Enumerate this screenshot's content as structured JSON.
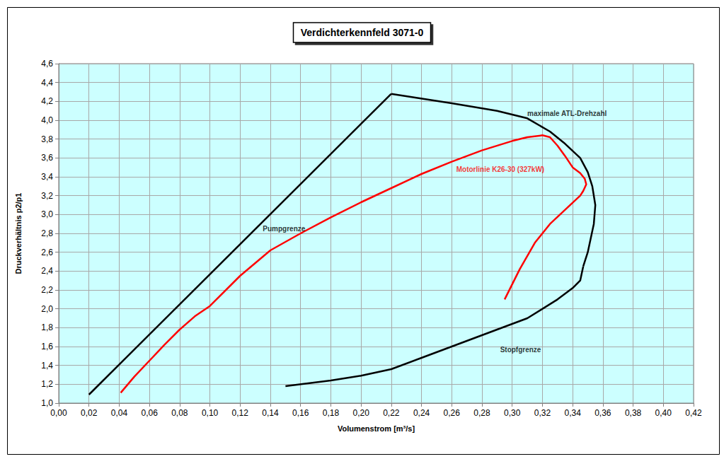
{
  "chart_data": {
    "type": "line",
    "title": "Verdichterkennfeld 3071-0",
    "x_label": "Volumenstrom [m³/s]",
    "y_label": "Druckverhältnis p2/p1",
    "xlim": [
      0,
      0.42
    ],
    "ylim": [
      1.0,
      4.6
    ],
    "xticks": [
      {
        "value": 0,
        "label": "0,00"
      },
      {
        "value": 0.02,
        "label": "0,02"
      },
      {
        "value": 0.04,
        "label": "0,04"
      },
      {
        "value": 0.06,
        "label": "0,06"
      },
      {
        "value": 0.08,
        "label": "0,08"
      },
      {
        "value": 0.1,
        "label": "0,10"
      },
      {
        "value": 0.12,
        "label": "0,12"
      },
      {
        "value": 0.14,
        "label": "0,14"
      },
      {
        "value": 0.16,
        "label": "0,16"
      },
      {
        "value": 0.18,
        "label": "0,18"
      },
      {
        "value": 0.2,
        "label": "0,20"
      },
      {
        "value": 0.22,
        "label": "0,22"
      },
      {
        "value": 0.24,
        "label": "0,24"
      },
      {
        "value": 0.26,
        "label": "0,26"
      },
      {
        "value": 0.28,
        "label": "0,28"
      },
      {
        "value": 0.3,
        "label": "0,30"
      },
      {
        "value": 0.32,
        "label": "0,32"
      },
      {
        "value": 0.34,
        "label": "0,34"
      },
      {
        "value": 0.36,
        "label": "0,36"
      },
      {
        "value": 0.38,
        "label": "0,38"
      },
      {
        "value": 0.4,
        "label": "0,40"
      },
      {
        "value": 0.42,
        "label": "0,42"
      }
    ],
    "yticks": [
      {
        "value": 1.0,
        "label": "1,0"
      },
      {
        "value": 1.2,
        "label": "1,2"
      },
      {
        "value": 1.4,
        "label": "1,4"
      },
      {
        "value": 1.6,
        "label": "1,6"
      },
      {
        "value": 1.8,
        "label": "1,8"
      },
      {
        "value": 2.0,
        "label": "2,0"
      },
      {
        "value": 2.2,
        "label": "2,2"
      },
      {
        "value": 2.4,
        "label": "2,4"
      },
      {
        "value": 2.6,
        "label": "2,6"
      },
      {
        "value": 2.8,
        "label": "2,8"
      },
      {
        "value": 3.0,
        "label": "3,0"
      },
      {
        "value": 3.2,
        "label": "3,2"
      },
      {
        "value": 3.4,
        "label": "3,4"
      },
      {
        "value": 3.6,
        "label": "3,6"
      },
      {
        "value": 3.8,
        "label": "3,8"
      },
      {
        "value": 4.0,
        "label": "4,0"
      },
      {
        "value": 4.2,
        "label": "4,2"
      },
      {
        "value": 4.4,
        "label": "4,4"
      },
      {
        "value": 4.6,
        "label": "4,6"
      }
    ],
    "grid": true,
    "series": [
      {
        "color": "#000000",
        "x": [
          0.02,
          0.22
        ],
        "values": [
          1.09,
          4.28
        ]
      },
      {
        "color": "#000000",
        "x": [
          0.22,
          0.26,
          0.29,
          0.31,
          0.325,
          0.335,
          0.345,
          0.35,
          0.353,
          0.355,
          0.354,
          0.35,
          0.347
        ],
        "values": [
          4.28,
          4.18,
          4.1,
          4.02,
          3.88,
          3.75,
          3.6,
          3.45,
          3.3,
          3.1,
          2.9,
          2.6,
          2.45
        ]
      },
      {
        "color": "#000000",
        "x": [
          0.347,
          0.345,
          0.34,
          0.33,
          0.31,
          0.28,
          0.26,
          0.24,
          0.22,
          0.2,
          0.18,
          0.15
        ],
        "values": [
          2.45,
          2.3,
          2.22,
          2.1,
          1.9,
          1.72,
          1.6,
          1.48,
          1.36,
          1.29,
          1.24,
          1.18
        ]
      },
      {
        "color": "#ff0000",
        "x": [
          0.041,
          0.05,
          0.06,
          0.07,
          0.08,
          0.09,
          0.1,
          0.12,
          0.14,
          0.16,
          0.18,
          0.2,
          0.22,
          0.24,
          0.26,
          0.28,
          0.3,
          0.31,
          0.32,
          0.325,
          0.33,
          0.335,
          0.34,
          0.345,
          0.348,
          0.349,
          0.347,
          0.345,
          0.335,
          0.325,
          0.315,
          0.305,
          0.295
        ],
        "values": [
          1.11,
          1.28,
          1.45,
          1.62,
          1.78,
          1.92,
          2.03,
          2.35,
          2.62,
          2.8,
          2.97,
          3.13,
          3.28,
          3.43,
          3.56,
          3.68,
          3.78,
          3.82,
          3.84,
          3.82,
          3.73,
          3.62,
          3.5,
          3.44,
          3.38,
          3.32,
          3.25,
          3.2,
          3.05,
          2.9,
          2.7,
          2.42,
          2.1
        ]
      }
    ],
    "annotations": [
      {
        "text": "Pumpgrenze",
        "x": 0.135,
        "y": 2.85,
        "color": "#000000"
      },
      {
        "text": "maximale ATL-Drehzahl",
        "x": 0.31,
        "y": 4.07,
        "color": "#000000"
      },
      {
        "text": "Motorlinie K26-30 (327kW)",
        "x": 0.263,
        "y": 3.48,
        "color": "#ff0000"
      },
      {
        "text": "Stopfgrenze",
        "x": 0.292,
        "y": 1.57,
        "color": "#000000"
      }
    ]
  }
}
